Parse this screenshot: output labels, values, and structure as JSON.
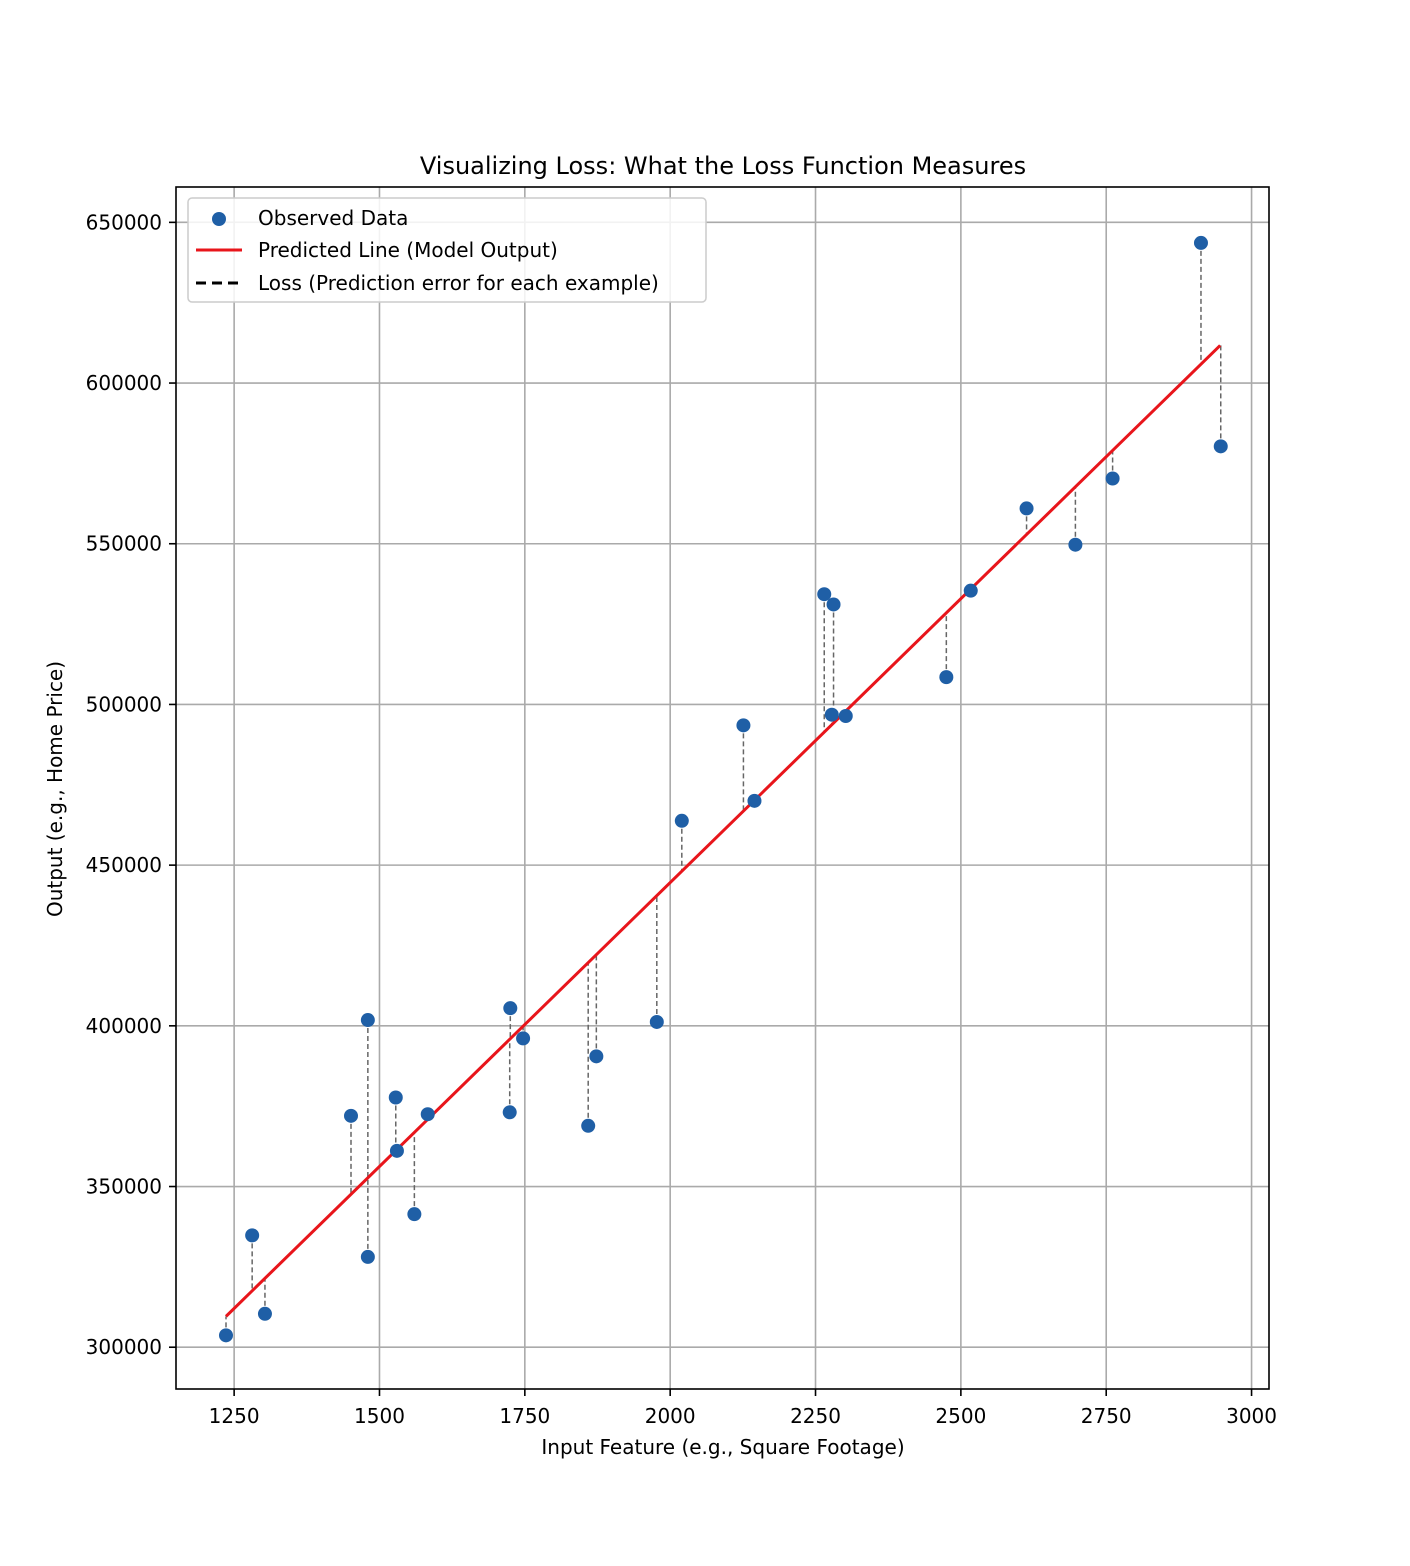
{
  "chart_data": {
    "type": "scatter",
    "title": "Visualizing Loss: What the Loss Function Measures",
    "xlabel": "Input Feature (e.g., Square Footage)",
    "ylabel": "Output (e.g., Home Price)",
    "xlim": [
      1150,
      3030
    ],
    "ylim": [
      287000,
      661000
    ],
    "x_ticks": [
      1250,
      1500,
      1750,
      2000,
      2250,
      2500,
      2750,
      3000
    ],
    "y_ticks": [
      300000,
      350000,
      400000,
      450000,
      500000,
      550000,
      600000,
      650000
    ],
    "grid": true,
    "legend_position": "upper-left",
    "legend": [
      {
        "label": "Observed Data",
        "marker": "circle",
        "color": "#1f5fa6"
      },
      {
        "label": "Predicted Line (Model Output)",
        "marker": "line",
        "color": "#e8151b"
      },
      {
        "label": "Loss (Prediction error for each example)",
        "marker": "dashed",
        "color": "#000000"
      }
    ],
    "colors": {
      "points": "#1f5fa6",
      "line": "#e8151b",
      "loss": "#666666",
      "grid": "#aaaaaa"
    },
    "line": {
      "name": "Predicted Line (Model Output)",
      "x": [
        1236,
        2946
      ],
      "y": [
        309600,
        611700
      ]
    },
    "series": [
      {
        "name": "Observed Data",
        "points": [
          {
            "x": 1236,
            "y": 303700
          },
          {
            "x": 1281,
            "y": 334800
          },
          {
            "x": 1303,
            "y": 310400
          },
          {
            "x": 1451,
            "y": 372000
          },
          {
            "x": 1480,
            "y": 401800
          },
          {
            "x": 1480,
            "y": 328100
          },
          {
            "x": 1528,
            "y": 377700
          },
          {
            "x": 1530,
            "y": 361100
          },
          {
            "x": 1560,
            "y": 341400
          },
          {
            "x": 1583,
            "y": 372500
          },
          {
            "x": 1725,
            "y": 405500
          },
          {
            "x": 1724,
            "y": 373100
          },
          {
            "x": 1747,
            "y": 396100
          },
          {
            "x": 1859,
            "y": 368900
          },
          {
            "x": 1873,
            "y": 390500
          },
          {
            "x": 1977,
            "y": 401200
          },
          {
            "x": 2020,
            "y": 463800
          },
          {
            "x": 2126,
            "y": 493500
          },
          {
            "x": 2145,
            "y": 470000
          },
          {
            "x": 2265,
            "y": 534300
          },
          {
            "x": 2281,
            "y": 531100
          },
          {
            "x": 2278,
            "y": 496800
          },
          {
            "x": 2302,
            "y": 496400
          },
          {
            "x": 2475,
            "y": 508500
          },
          {
            "x": 2517,
            "y": 535400
          },
          {
            "x": 2613,
            "y": 561000
          },
          {
            "x": 2697,
            "y": 549700
          },
          {
            "x": 2761,
            "y": 570300
          },
          {
            "x": 2913,
            "y": 643600
          },
          {
            "x": 2947,
            "y": 580300
          }
        ]
      }
    ]
  }
}
